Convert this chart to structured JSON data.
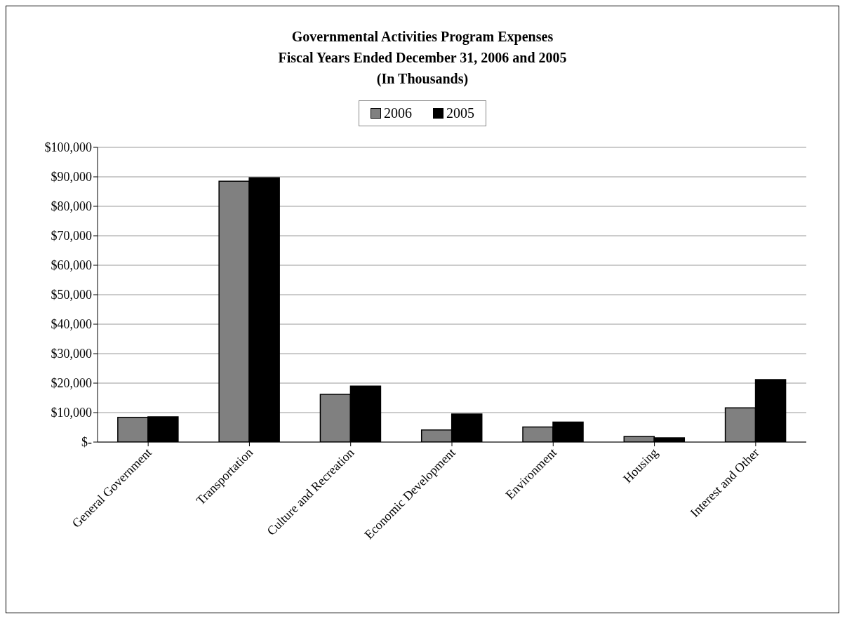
{
  "chart_data": {
    "type": "bar",
    "title": "Governmental Activities Program Expenses\nFiscal Years Ended December 31, 2006 and 2005\n(In Thousands)",
    "categories": [
      "General Government",
      "Transportation",
      "Culture and Recreation",
      "Economic Development",
      "Environment",
      "Housing",
      "Interest and Other"
    ],
    "series": [
      {
        "name": "2006",
        "color": "#808080",
        "values": [
          8400,
          88500,
          16200,
          4100,
          5100,
          1900,
          11600
        ]
      },
      {
        "name": "2005",
        "color": "#000000",
        "values": [
          8600,
          89700,
          19000,
          9500,
          6800,
          1400,
          21200
        ]
      }
    ],
    "ylim": [
      0,
      100000
    ],
    "yticks": [
      {
        "value": 0,
        "label": "$-"
      },
      {
        "value": 10000,
        "label": "$10,000"
      },
      {
        "value": 20000,
        "label": "$20,000"
      },
      {
        "value": 30000,
        "label": "$30,000"
      },
      {
        "value": 40000,
        "label": "$40,000"
      },
      {
        "value": 50000,
        "label": "$50,000"
      },
      {
        "value": 60000,
        "label": "$60,000"
      },
      {
        "value": 70000,
        "label": "$70,000"
      },
      {
        "value": 80000,
        "label": "$80,000"
      },
      {
        "value": 90000,
        "label": "$90,000"
      },
      {
        "value": 100000,
        "label": "$100,000"
      }
    ],
    "grid": "y",
    "legend": "top"
  }
}
